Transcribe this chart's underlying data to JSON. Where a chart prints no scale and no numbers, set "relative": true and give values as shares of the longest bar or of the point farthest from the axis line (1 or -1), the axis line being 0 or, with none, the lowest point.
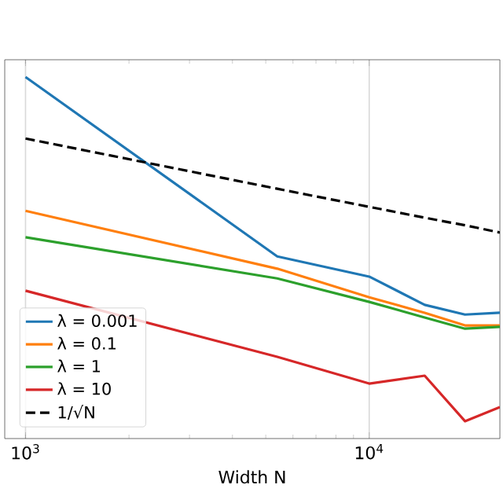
{
  "chart_data": {
    "type": "line",
    "xlabel": "Width N",
    "relative": true,
    "log": "x",
    "xlim": [
      870,
      24000
    ],
    "xticks": [
      {
        "value": 1000,
        "label": "10$^{3}$"
      },
      {
        "value": 10000,
        "label": "10$^{4}$"
      }
    ],
    "grid": "x",
    "legend": "bottom left",
    "tick_labels": "x",
    "x": [
      1000,
      5400,
      10000,
      14500,
      19000,
      24000
    ],
    "series": [
      {
        "name": "λ = 0.001",
        "color": "#1f77b4",
        "values": [
          1,
          0.504,
          0.448,
          0.37,
          0.343,
          0.348
        ]
      },
      {
        "name": "λ = 0.1",
        "color": "#ff7f0e",
        "values": [
          0.63,
          0.47,
          0.391,
          0.348,
          0.313,
          0.313
        ]
      },
      {
        "name": "λ = 1",
        "color": "#2ca02c",
        "values": [
          0.557,
          0.443,
          0.378,
          0.335,
          0.304,
          0.309
        ]
      },
      {
        "name": "λ = 10",
        "color": "#d62728",
        "values": [
          0.409,
          0.226,
          0.152,
          0.174,
          0.048,
          0.087
        ]
      },
      {
        "name": "1/√N",
        "color": "#000000",
        "line_style": "dashed",
        "values": [
          0.83,
          0.691,
          0.641,
          0.611,
          0.59,
          0.57
        ]
      }
    ]
  }
}
